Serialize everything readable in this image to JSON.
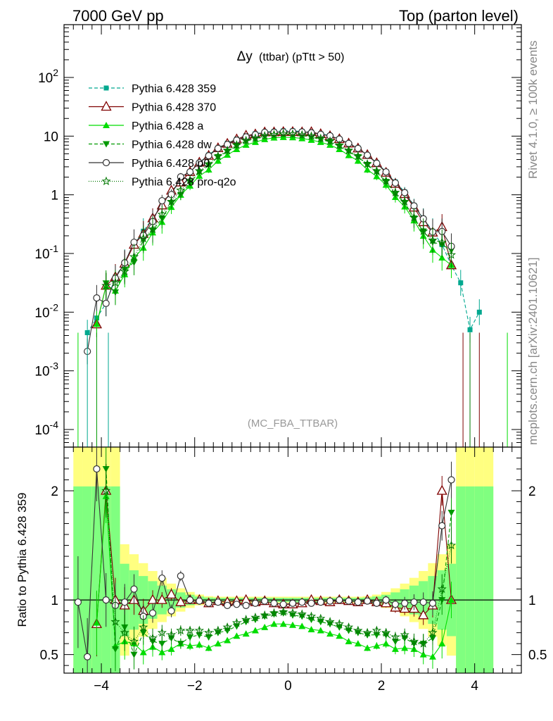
{
  "header": {
    "left": "7000 GeV pp",
    "right": "Top (parton level)"
  },
  "side_labels": {
    "rivet": "Rivet 4.1.0, ≥ 100k events",
    "mcplots": "mcplots.cern.ch [arXiv:2401.10621]"
  },
  "watermark": "(MC_FBA_TTBAR)",
  "colors": {
    "teal": "#00a88f",
    "maroon": "#7f0000",
    "lime": "#00dd00",
    "darkgreen": "#009900",
    "gray": "#333333",
    "forest": "#007700",
    "band_yellow": "#ffff80",
    "band_green": "#80ff80"
  },
  "chart_data": [
    {
      "type": "line",
      "title": "Δy (ttbar) (pTtt > 50)",
      "title_main": "Δy",
      "title_sub": "(ttbar) (pTtt > 50)",
      "xlim": [
        -4.8,
        5.0
      ],
      "ylim_log10": [
        -4.3,
        2.9
      ],
      "yscale": "log",
      "y_ticks": [
        "10^-4",
        "10^-3",
        "10^-2",
        "10^-1",
        "1",
        "10",
        "10^2"
      ],
      "legend": [
        {
          "name": "Pythia 6.428 359",
          "color": "#00a88f",
          "marker": "square",
          "dash": "5,3"
        },
        {
          "name": "Pythia 6.428 370",
          "color": "#7f0000",
          "marker": "triangle-open",
          "dash": ""
        },
        {
          "name": "Pythia 6.428 a",
          "color": "#00dd00",
          "marker": "triangle",
          "dash": ""
        },
        {
          "name": "Pythia 6.428 dw",
          "color": "#009900",
          "marker": "triangle-down",
          "dash": "5,3"
        },
        {
          "name": "Pythia 6.428 p0",
          "color": "#333333",
          "marker": "circle-open",
          "dash": ""
        },
        {
          "name": "Pythia 6.428 pro-q2o",
          "color": "#007700",
          "marker": "star",
          "dash": "1,2"
        }
      ],
      "series_points": {
        "x": [
          -4.5,
          -4.3,
          -4.1,
          -3.9,
          -3.7,
          -3.5,
          -3.3,
          -3.1,
          -2.9,
          -2.7,
          -2.5,
          -2.3,
          -2.1,
          -1.9,
          -1.7,
          -1.5,
          -1.3,
          -1.1,
          -0.9,
          -0.7,
          -0.5,
          -0.3,
          -0.1,
          0.1,
          0.3,
          0.5,
          0.7,
          0.9,
          1.1,
          1.3,
          1.5,
          1.7,
          1.9,
          2.1,
          2.3,
          2.5,
          2.7,
          2.9,
          3.1,
          3.3,
          3.5,
          3.7,
          3.9,
          4.1,
          4.3,
          4.7
        ],
        "reference_log10y_359": [
          null,
          -2.35,
          -2.1,
          -1.85,
          -1.4,
          -1.15,
          -0.85,
          -0.62,
          -0.4,
          -0.18,
          0.05,
          0.22,
          0.39,
          0.55,
          0.68,
          0.8,
          0.88,
          0.95,
          1.01,
          1.04,
          1.07,
          1.08,
          1.09,
          1.09,
          1.08,
          1.07,
          1.04,
          1.01,
          0.95,
          0.88,
          0.8,
          0.68,
          0.55,
          0.39,
          0.22,
          0.05,
          -0.18,
          -0.4,
          -0.62,
          -0.85,
          -1.2,
          -1.5,
          -2.3,
          -2.0,
          null,
          null
        ]
      }
    },
    {
      "type": "line",
      "ylabel": "Ratio to Pythia 6.428 359",
      "xlim": [
        -4.8,
        5.0
      ],
      "ylim": [
        0.33,
        2.4
      ],
      "y_ticks": [
        "0.5",
        "1",
        "2"
      ],
      "x_ticks": [
        "−4",
        "−2",
        "0",
        "2",
        "4"
      ],
      "series": [
        {
          "name": "Pythia 6.428 370",
          "values": [
            null,
            null,
            0.78,
            2.0,
            1.0,
            0.95,
            1.0,
            0.9,
            1.0,
            1.0,
            1.05,
            0.98,
            1.0,
            1.0,
            0.97,
            0.99,
            0.98,
            0.99,
            1.0,
            0.98,
            0.99,
            0.97,
            0.96,
            0.96,
            0.97,
            1.0,
            0.99,
            0.98,
            1.0,
            0.99,
            0.98,
            1.0,
            0.98,
            0.97,
            0.93,
            0.92,
            0.92,
            0.86,
            0.95,
            2.0,
            1.0,
            null,
            null,
            null,
            null,
            null
          ]
        },
        {
          "name": "Pythia 6.428 a",
          "values": [
            null,
            null,
            0.79,
            1.95,
            0.58,
            0.62,
            0.6,
            0.52,
            0.57,
            0.52,
            0.55,
            0.6,
            0.58,
            0.59,
            0.56,
            0.6,
            0.63,
            0.67,
            0.69,
            0.72,
            0.75,
            0.78,
            0.78,
            0.77,
            0.76,
            0.73,
            0.72,
            0.69,
            0.67,
            0.62,
            0.6,
            0.56,
            0.58,
            0.6,
            0.55,
            0.56,
            0.55,
            0.5,
            0.48,
            0.6,
            1.0,
            null,
            null,
            null,
            null,
            null
          ]
        },
        {
          "name": "Pythia 6.428 dw",
          "values": [
            null,
            null,
            null,
            2.2,
            0.55,
            0.75,
            0.5,
            0.7,
            0.62,
            0.6,
            0.65,
            0.6,
            0.66,
            0.68,
            0.66,
            0.7,
            0.72,
            0.76,
            0.8,
            0.82,
            0.85,
            0.87,
            0.88,
            0.86,
            0.85,
            0.82,
            0.8,
            0.78,
            0.75,
            0.72,
            0.7,
            0.68,
            0.68,
            0.68,
            0.62,
            0.65,
            0.6,
            0.6,
            0.65,
            1.0,
            1.8,
            null,
            null,
            null,
            null,
            null
          ]
        },
        {
          "name": "Pythia 6.428 p0",
          "values": [
            0.98,
            0.48,
            2.2,
            1.0,
            0.95,
            0.98,
            1.1,
            0.85,
            0.88,
            1.2,
            0.9,
            1.22,
            1.0,
            0.99,
            0.97,
            0.98,
            0.95,
            0.96,
            0.95,
            0.97,
            0.99,
            0.97,
            0.96,
            0.97,
            0.98,
            0.97,
            0.98,
            0.99,
            1.0,
            0.99,
            0.98,
            0.99,
            0.97,
            1.0,
            0.96,
            0.97,
            0.98,
            0.98,
            0.97,
            1.68,
            2.1,
            null,
            null,
            null,
            null,
            null
          ]
        },
        {
          "name": "Pythia 6.428 pro-q2o",
          "values": [
            null,
            null,
            null,
            2.0,
            0.8,
            0.7,
            0.62,
            0.75,
            0.65,
            0.7,
            0.68,
            0.72,
            0.72,
            0.72,
            0.7,
            0.72,
            0.75,
            0.79,
            0.82,
            0.84,
            0.86,
            0.88,
            0.89,
            0.88,
            0.87,
            0.85,
            0.83,
            0.8,
            0.78,
            0.75,
            0.72,
            0.7,
            0.72,
            0.7,
            0.66,
            0.68,
            0.62,
            0.6,
            0.7,
            1.1,
            1.5,
            null,
            null,
            null,
            null,
            null
          ]
        }
      ]
    }
  ]
}
